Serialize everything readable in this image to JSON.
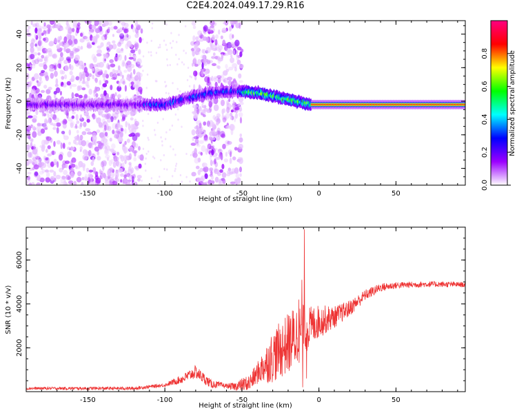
{
  "title": "C2E4.2024.049.17.29.R16",
  "chart_data": [
    {
      "type": "heatmap",
      "xlabel": "Height of straight line (km)",
      "ylabel": "Frequency (Hz)",
      "xlim": [
        -190,
        95
      ],
      "ylim": [
        -50,
        48
      ],
      "x_ticks": [
        -150,
        -100,
        -50,
        0,
        50
      ],
      "y_ticks": [
        -40,
        -20,
        0,
        20,
        40
      ],
      "colorbar": {
        "label": "Normalized spectral amplitude",
        "ticks": [
          "0.0",
          "0.2",
          "0.4",
          "0.6",
          "0.8"
        ],
        "range": [
          0,
          1
        ],
        "colors": [
          "#ffffff",
          "#9b00ff",
          "#0000ff",
          "#00ffff",
          "#00ff00",
          "#ffff00",
          "#ff0000",
          "#ff0080"
        ]
      },
      "ridge": [
        {
          "x": -190,
          "y": -2
        },
        {
          "x": -150,
          "y": -2
        },
        {
          "x": -115,
          "y": -2
        },
        {
          "x": -100,
          "y": -2
        },
        {
          "x": -85,
          "y": 2
        },
        {
          "x": -70,
          "y": 5
        },
        {
          "x": -55,
          "y": 6
        },
        {
          "x": -40,
          "y": 5
        },
        {
          "x": -25,
          "y": 2
        },
        {
          "x": -15,
          "y": 0
        },
        {
          "x": -5,
          "y": -2
        },
        {
          "x": 90,
          "y": -2
        }
      ],
      "noise_regions": [
        [
          -190,
          -115
        ],
        [
          -82,
          -50
        ]
      ]
    },
    {
      "type": "line",
      "xlabel": "Height of straight line (km)",
      "ylabel": "SNR (10 * v/v)",
      "xlim": [
        -190,
        95
      ],
      "ylim": [
        0,
        7500
      ],
      "x_ticks": [
        -150,
        -100,
        -50,
        0,
        50
      ],
      "y_ticks": [
        2000,
        4000,
        6000
      ],
      "line_color": "#ee3333",
      "profile": [
        {
          "x": -190,
          "y": 150
        },
        {
          "x": -120,
          "y": 150
        },
        {
          "x": -100,
          "y": 300
        },
        {
          "x": -88,
          "y": 600
        },
        {
          "x": -80,
          "y": 900
        },
        {
          "x": -70,
          "y": 350
        },
        {
          "x": -55,
          "y": 220
        },
        {
          "x": -45,
          "y": 400
        },
        {
          "x": -38,
          "y": 1000
        },
        {
          "x": -30,
          "y": 1600
        },
        {
          "x": -20,
          "y": 2200
        },
        {
          "x": -12,
          "y": 2700
        },
        {
          "x": -5,
          "y": 3000
        },
        {
          "x": 0,
          "y": 3200
        },
        {
          "x": 10,
          "y": 3400
        },
        {
          "x": 20,
          "y": 3800
        },
        {
          "x": 30,
          "y": 4400
        },
        {
          "x": 40,
          "y": 4750
        },
        {
          "x": 50,
          "y": 4850
        },
        {
          "x": 70,
          "y": 4900
        },
        {
          "x": 95,
          "y": 4880
        }
      ],
      "noise_amplitude": [
        {
          "x": -190,
          "y": 60
        },
        {
          "x": -100,
          "y": 80
        },
        {
          "x": -80,
          "y": 300
        },
        {
          "x": -60,
          "y": 100
        },
        {
          "x": -40,
          "y": 500
        },
        {
          "x": -30,
          "y": 1200
        },
        {
          "x": -15,
          "y": 1500
        },
        {
          "x": -5,
          "y": 900
        },
        {
          "x": 10,
          "y": 500
        },
        {
          "x": 30,
          "y": 250
        },
        {
          "x": 50,
          "y": 150
        },
        {
          "x": 95,
          "y": 120
        }
      ],
      "spikes": [
        {
          "x": -9.5,
          "y": 7400
        },
        {
          "x": -11,
          "y": 5100
        },
        {
          "x": -13,
          "y": 4200
        },
        {
          "x": -8,
          "y": 600
        },
        {
          "x": -10.5,
          "y": 200
        }
      ]
    }
  ]
}
